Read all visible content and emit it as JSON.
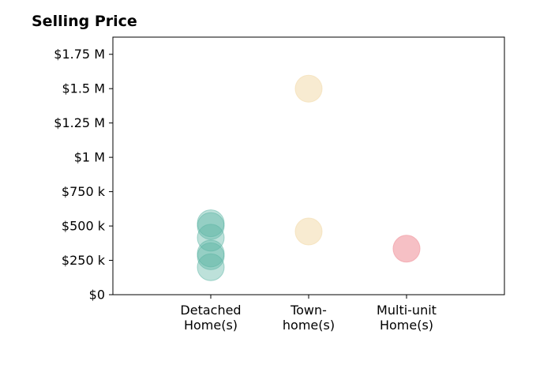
{
  "chart_data": {
    "type": "scatter",
    "title": "Selling Price",
    "xlabel": "",
    "ylabel": "",
    "categories": [
      [
        "Detached",
        "Home(s)"
      ],
      [
        "Town-",
        "home(s)"
      ],
      [
        "Multi-unit",
        "Home(s)"
      ]
    ],
    "xlim": [
      -1,
      3
    ],
    "ylim": [
      0,
      1875000
    ],
    "yticks": [
      {
        "value": 0,
        "label": "$0"
      },
      {
        "value": 250000,
        "label": "$250 k"
      },
      {
        "value": 500000,
        "label": "$500 k"
      },
      {
        "value": 750000,
        "label": "$750 k"
      },
      {
        "value": 1000000,
        "label": "$1 M"
      },
      {
        "value": 1250000,
        "label": "$1.25 M"
      },
      {
        "value": 1500000,
        "label": "$1.5 M"
      },
      {
        "value": 1750000,
        "label": "$1.75 M"
      }
    ],
    "grid": false,
    "colors": {
      "detached": "#5ab4a3",
      "townhome": "#f3deb3",
      "multiunit": "#f2a5ad"
    },
    "series": [
      {
        "category": 0,
        "color_key": "detached",
        "opacity": 0.4,
        "values": [
          200000,
          280000,
          300000,
          415000,
          500000,
          520000
        ]
      },
      {
        "category": 1,
        "color_key": "townhome",
        "opacity": 0.6,
        "values": [
          460000,
          1500000
        ]
      },
      {
        "category": 2,
        "color_key": "multiunit",
        "opacity": 0.7,
        "values": [
          335000
        ]
      }
    ]
  }
}
